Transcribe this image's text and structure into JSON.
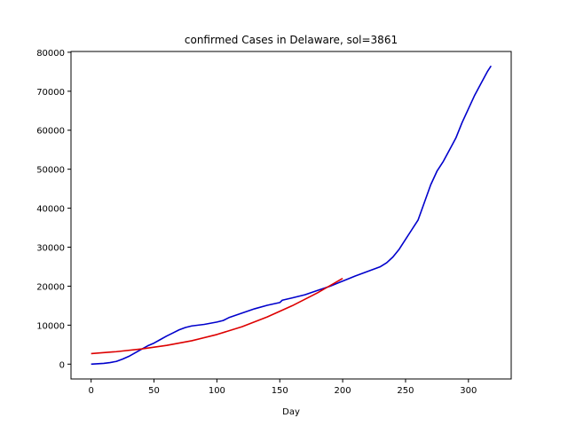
{
  "chart_data": {
    "type": "line",
    "title": "confirmed Cases in Delaware, sol=3861",
    "xlabel": "Day",
    "ylabel": "",
    "xlim": [
      -16,
      334
    ],
    "ylim": [
      -3800,
      80200
    ],
    "xticks": [
      0,
      50,
      100,
      150,
      200,
      250,
      300
    ],
    "yticks": [
      0,
      10000,
      20000,
      30000,
      40000,
      50000,
      60000,
      70000,
      80000
    ],
    "grid": false,
    "legend": "none",
    "series": [
      {
        "color": "#0000cc",
        "x": [
          0,
          10,
          15,
          20,
          25,
          30,
          35,
          40,
          45,
          50,
          55,
          60,
          65,
          70,
          75,
          80,
          90,
          100,
          105,
          110,
          120,
          130,
          140,
          150,
          152,
          160,
          170,
          180,
          190,
          200,
          210,
          220,
          230,
          235,
          240,
          245,
          250,
          255,
          260,
          265,
          270,
          275,
          280,
          285,
          290,
          295,
          300,
          305,
          310,
          315,
          318
        ],
        "y": [
          0,
          200,
          400,
          700,
          1300,
          2000,
          2900,
          3800,
          4700,
          5400,
          6300,
          7200,
          8000,
          8800,
          9400,
          9800,
          10200,
          10800,
          11200,
          12000,
          13100,
          14200,
          15100,
          15800,
          16400,
          17000,
          17800,
          18900,
          20000,
          21300,
          22600,
          23800,
          25000,
          26000,
          27500,
          29500,
          32000,
          34500,
          37000,
          41500,
          46000,
          49500,
          52000,
          55000,
          58000,
          62000,
          65500,
          69000,
          72000,
          75000,
          76500
        ]
      },
      {
        "color": "#dd0000",
        "x": [
          0,
          20,
          40,
          60,
          80,
          100,
          120,
          140,
          160,
          180,
          200
        ],
        "y": [
          2700,
          3200,
          3900,
          4800,
          6000,
          7600,
          9600,
          12100,
          15000,
          18300,
          22000
        ]
      }
    ]
  }
}
